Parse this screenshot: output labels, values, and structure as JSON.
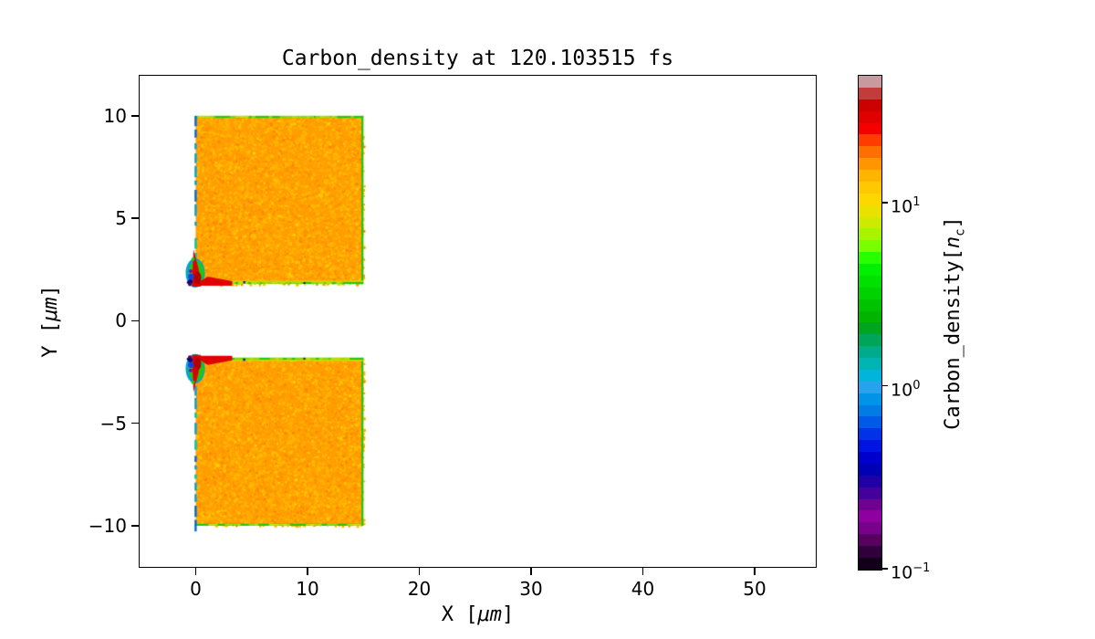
{
  "chart_data": {
    "type": "heatmap",
    "title": "Carbon_density at 120.103515 fs",
    "quantity": "Carbon_density",
    "time_fs": 120.103515,
    "xlabel": "X [μm]",
    "ylabel": "Y [μm]",
    "xlabel_parts": {
      "prefix": "X [",
      "unit": "μm",
      "suffix": "]"
    },
    "ylabel_parts": {
      "prefix": "Y [",
      "unit": "μm",
      "suffix": "]"
    },
    "xlim": [
      -5.1,
      55.55
    ],
    "ylim": [
      -12.05,
      12.0
    ],
    "grid": false,
    "background_value": "white (below color scale minimum)",
    "x_ticks": [
      {
        "value": 0,
        "label": "0"
      },
      {
        "value": 10,
        "label": "10"
      },
      {
        "value": 20,
        "label": "20"
      },
      {
        "value": 30,
        "label": "30"
      },
      {
        "value": 40,
        "label": "40"
      },
      {
        "value": 50,
        "label": "50"
      }
    ],
    "y_ticks": [
      {
        "value": 10,
        "label": "10"
      },
      {
        "value": 5,
        "label": "5"
      },
      {
        "value": 0,
        "label": "0"
      },
      {
        "value": -5,
        "label": "−5"
      },
      {
        "value": -10,
        "label": "−10"
      }
    ],
    "colorbar": {
      "label": "Carbon_density[nc]",
      "label_parts": {
        "prefix": "Carbon_density[",
        "var": "n",
        "sub": "c",
        "suffix": "]"
      },
      "scale": "log10",
      "vmin": 0.1,
      "vmax": 50,
      "ticks": [
        {
          "value": 10,
          "mantissa": "10",
          "exponent": "1"
        },
        {
          "value": 1,
          "mantissa": "10",
          "exponent": "0"
        },
        {
          "value": 0.1,
          "mantissa": "10",
          "exponent": "−1"
        }
      ],
      "band_colors_bottom_to_top": [
        "#12001a",
        "#31003c",
        "#560060",
        "#78008a",
        "#8e00a0",
        "#70008f",
        "#44009b",
        "#1e00a4",
        "#0000b4",
        "#0000cd",
        "#0014e1",
        "#0032e8",
        "#005ae8",
        "#007ce4",
        "#0094e8",
        "#28a2ec",
        "#00b4dc",
        "#00b4b4",
        "#00aa8c",
        "#00a55a",
        "#00a51e",
        "#00b400",
        "#00c300",
        "#00d200",
        "#00e100",
        "#00f000",
        "#28ff00",
        "#78ff00",
        "#a5f500",
        "#cdeb00",
        "#ebe100",
        "#ffd700",
        "#ffc800",
        "#ffb400",
        "#ff9600",
        "#ff6e00",
        "#ff3c00",
        "#f50000",
        "#e10000",
        "#cd0000",
        "#c33c3c",
        "#c89aa0"
      ]
    },
    "features": {
      "description": "Two rectangular carbon target slabs separated by an empty channel centered on y=0; the irradiated front surface at x=0 shows low-density expanding plasma and hot spots at the inner corners.",
      "slabs": [
        {
          "x_um": [
            0,
            15
          ],
          "y_um": [
            1.8,
            10
          ],
          "inner_edge": "bottom",
          "fill_value_nc": 15
        },
        {
          "x_um": [
            0,
            15
          ],
          "y_um": [
            -10,
            -1.8
          ],
          "inner_edge": "top",
          "fill_value_nc": 15
        }
      ],
      "channel_halfwidth_um": 1.8,
      "hotspots": [
        {
          "x_um": 0,
          "y_um": 1.8,
          "peak_value_nc": 40
        },
        {
          "x_um": 0,
          "y_um": -1.8,
          "peak_value_nc": 40
        }
      ],
      "colors": {
        "slab_fill": "#ff9e00",
        "speckle": [
          "#ffb400",
          "#ffc300",
          "#ff9100",
          "#ffaf00",
          "#ff8500",
          "#ffd000"
        ],
        "edge_green": "#1ec814",
        "edge_yellow": "#d7e600",
        "edge_fringe": "#c8e000",
        "front_edge_cyan": "#00a0dc",
        "front_edge_blue": "#0066e0",
        "front_edge_teal": "#00c8a0",
        "hotspot_red": "#e10000",
        "hotspot_dark_red": "#b40000",
        "hotspot_blue": "#1e3cdc",
        "hotspot_navy": "#000a96",
        "hotspot_purple": "#50006e",
        "hotspot_magenta": "#8e00a0"
      }
    }
  }
}
